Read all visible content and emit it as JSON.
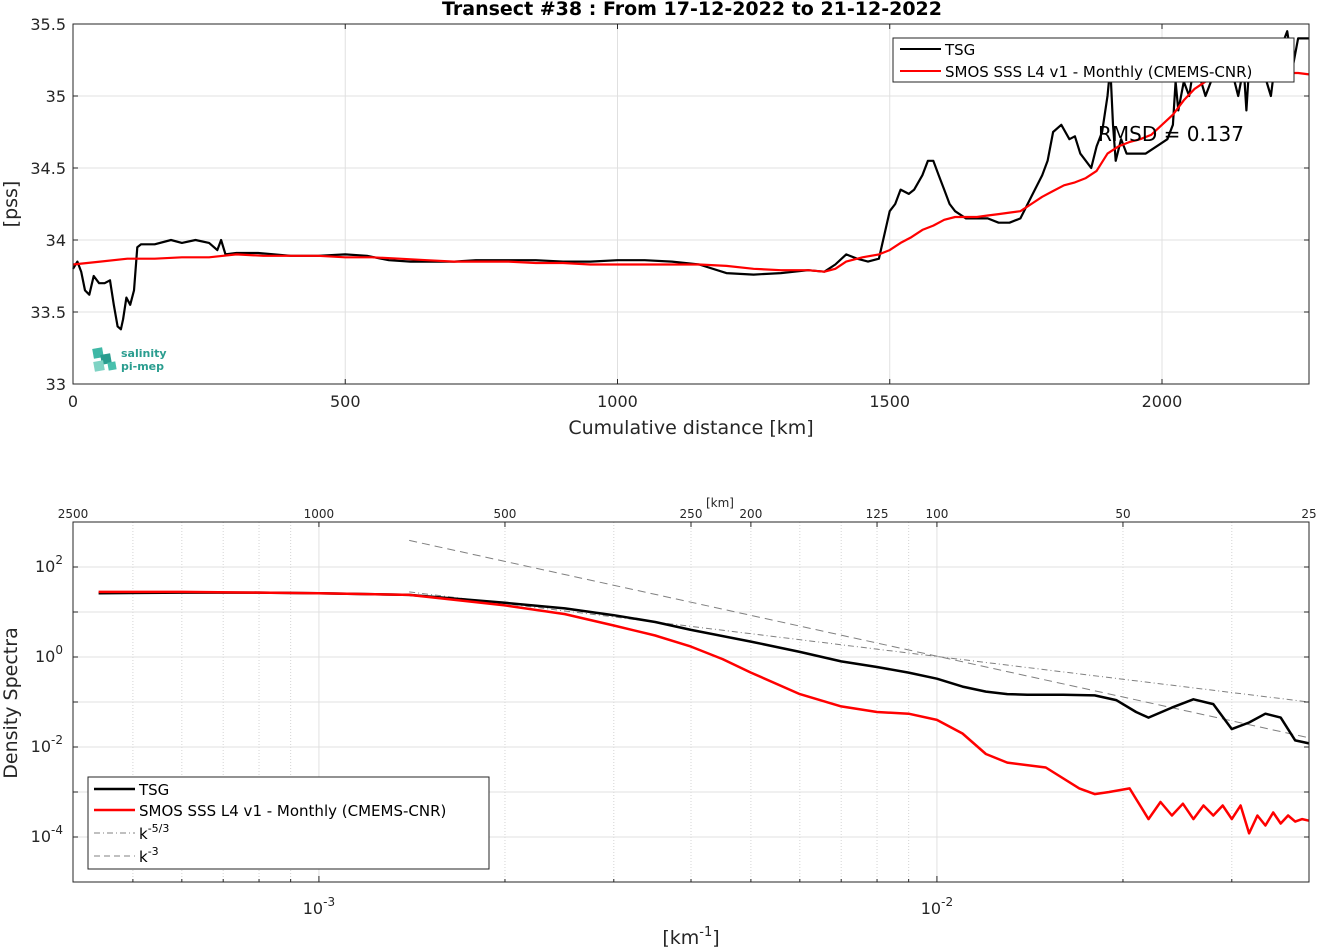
{
  "chart_data": [
    {
      "type": "line",
      "title": "Transect #38 : From 17-12-2022 to 21-12-2022",
      "xlabel": "Cumulative distance [km]",
      "ylabel": "[pss]",
      "xlim": [
        0,
        2270
      ],
      "ylim": [
        33,
        35.5
      ],
      "xticks": [
        0,
        500,
        1000,
        1500,
        2000
      ],
      "yticks": [
        33,
        33.5,
        34,
        34.5,
        35,
        35.5
      ],
      "xtick_labels": [
        "0",
        "500",
        "1000",
        "1500",
        "2000"
      ],
      "ytick_labels": [
        "33",
        "33.5",
        "34",
        "34.5",
        "35",
        "35.5"
      ],
      "grid": true,
      "legend_position": "top-right",
      "annotation": "RMSD = 0.137",
      "logo": {
        "line1": "salinity",
        "line2": "pi-mep"
      },
      "series": [
        {
          "name": "TSG",
          "color": "#000000",
          "x": [
            0,
            8,
            15,
            22,
            30,
            38,
            48,
            58,
            68,
            75,
            82,
            88,
            92,
            98,
            105,
            112,
            118,
            125,
            150,
            180,
            200,
            225,
            250,
            265,
            272,
            280,
            300,
            340,
            400,
            450,
            500,
            540,
            580,
            620,
            660,
            700,
            740,
            800,
            850,
            900,
            950,
            1000,
            1050,
            1100,
            1150,
            1200,
            1250,
            1300,
            1350,
            1380,
            1400,
            1420,
            1440,
            1460,
            1480,
            1500,
            1510,
            1520,
            1535,
            1545,
            1560,
            1570,
            1580,
            1590,
            1600,
            1610,
            1620,
            1640,
            1660,
            1680,
            1700,
            1720,
            1740,
            1760,
            1780,
            1790,
            1800,
            1815,
            1830,
            1840,
            1850,
            1860,
            1870,
            1880,
            1890,
            1900,
            1905,
            1910,
            1915,
            1925,
            1935,
            1950,
            1970,
            1990,
            2010,
            2020,
            2025,
            2030,
            2040,
            2050,
            2060,
            2080,
            2100,
            2120,
            2140,
            2150,
            2155,
            2160,
            2180,
            2200,
            2210,
            2220,
            2230,
            2240,
            2250,
            2270
          ],
          "values": [
            33.8,
            33.85,
            33.78,
            33.65,
            33.62,
            33.75,
            33.7,
            33.7,
            33.72,
            33.55,
            33.4,
            33.38,
            33.45,
            33.6,
            33.55,
            33.65,
            33.95,
            33.97,
            33.97,
            34.0,
            33.98,
            34.0,
            33.98,
            33.93,
            34.0,
            33.9,
            33.91,
            33.91,
            33.89,
            33.89,
            33.9,
            33.89,
            33.86,
            33.85,
            33.85,
            33.85,
            33.86,
            33.86,
            33.86,
            33.85,
            33.85,
            33.86,
            33.86,
            33.85,
            33.83,
            33.77,
            33.76,
            33.77,
            33.79,
            33.78,
            33.83,
            33.9,
            33.87,
            33.85,
            33.87,
            34.2,
            34.25,
            34.35,
            34.32,
            34.35,
            34.45,
            34.55,
            34.55,
            34.45,
            34.35,
            34.25,
            34.2,
            34.15,
            34.15,
            34.15,
            34.12,
            34.12,
            34.15,
            34.3,
            34.45,
            34.55,
            34.75,
            34.8,
            34.7,
            34.72,
            34.6,
            34.55,
            34.5,
            34.65,
            34.75,
            35.0,
            35.2,
            34.8,
            34.55,
            34.7,
            34.6,
            34.6,
            34.6,
            34.65,
            34.7,
            34.8,
            35.1,
            34.9,
            35.1,
            35.0,
            35.25,
            35.0,
            35.2,
            35.3,
            35.0,
            35.2,
            34.9,
            35.2,
            35.25,
            35.0,
            35.3,
            35.35,
            35.45,
            35.2,
            35.4,
            35.4
          ]
        },
        {
          "name": "SMOS SSS L4 v1 - Monthly (CMEMS-CNR)",
          "color": "#ff0000",
          "x": [
            0,
            50,
            100,
            150,
            200,
            250,
            300,
            350,
            400,
            450,
            500,
            550,
            600,
            650,
            700,
            750,
            800,
            850,
            900,
            950,
            1000,
            1050,
            1100,
            1150,
            1200,
            1250,
            1300,
            1350,
            1380,
            1400,
            1420,
            1450,
            1480,
            1500,
            1520,
            1540,
            1560,
            1580,
            1600,
            1620,
            1640,
            1660,
            1680,
            1700,
            1720,
            1740,
            1760,
            1780,
            1800,
            1820,
            1840,
            1860,
            1880,
            1900,
            1920,
            1940,
            1960,
            1980,
            2000,
            2020,
            2040,
            2060,
            2080,
            2100,
            2140,
            2180,
            2220,
            2250,
            2270
          ],
          "values": [
            33.83,
            33.85,
            33.87,
            33.87,
            33.88,
            33.88,
            33.9,
            33.89,
            33.89,
            33.89,
            33.88,
            33.88,
            33.87,
            33.86,
            33.85,
            33.85,
            33.85,
            33.84,
            33.84,
            33.83,
            33.83,
            33.83,
            33.83,
            33.83,
            33.82,
            33.8,
            33.79,
            33.79,
            33.78,
            33.8,
            33.85,
            33.88,
            33.9,
            33.93,
            33.98,
            34.02,
            34.07,
            34.1,
            34.14,
            34.16,
            34.16,
            34.16,
            34.17,
            34.18,
            34.19,
            34.2,
            34.25,
            34.3,
            34.34,
            34.38,
            34.4,
            34.43,
            34.48,
            34.6,
            34.65,
            34.68,
            34.7,
            34.73,
            34.8,
            34.87,
            34.97,
            35.05,
            35.1,
            35.12,
            35.15,
            35.15,
            35.16,
            35.16,
            35.15
          ]
        }
      ]
    },
    {
      "type": "line",
      "title": "",
      "xlabel": "[km-1]",
      "xlabel_base": "[km",
      "xlabel_sup": "-1",
      "xlabel_close": "]",
      "ylabel": "Density Spectra",
      "x_scale": "log",
      "y_scale": "log",
      "xlim": [
        0.0004,
        0.04
      ],
      "ylim": [
        1e-05,
        1000
      ],
      "top_axis_label": "[km]",
      "top_ticks_km": [
        2500,
        1000,
        500,
        250,
        200,
        125,
        100,
        50,
        25
      ],
      "top_tick_labels": [
        "2500",
        "1000",
        "500",
        "250",
        "200",
        "125",
        "100",
        "50",
        "25"
      ],
      "xtick_labels": [
        {
          "base": "10",
          "exp": "-3",
          "value": 0.001
        },
        {
          "base": "10",
          "exp": "-2",
          "value": 0.01
        }
      ],
      "ytick_labels": [
        {
          "base": "10",
          "exp": "-4",
          "value": 0.0001
        },
        {
          "base": "10",
          "exp": "-2",
          "value": 0.01
        },
        {
          "base": "10",
          "exp": "0",
          "value": 1
        },
        {
          "base": "10",
          "exp": "2",
          "value": 100
        }
      ],
      "grid": true,
      "legend_position": "bottom-left",
      "legend": [
        {
          "label": "TSG",
          "color": "#000000",
          "style": "solid"
        },
        {
          "label": "SMOS SSS L4 v1 - Monthly (CMEMS-CNR)",
          "color": "#ff0000",
          "style": "solid"
        },
        {
          "label": "k",
          "sup": "-5/3",
          "color": "#808080",
          "style": "dashdot"
        },
        {
          "label": "k",
          "sup": "-3",
          "color": "#808080",
          "style": "dashed"
        }
      ],
      "series": [
        {
          "name": "TSG",
          "color": "#000000",
          "x": [
            0.00044,
            0.0006,
            0.0008,
            0.001,
            0.0014,
            0.002,
            0.0025,
            0.003,
            0.0035,
            0.004,
            0.005,
            0.006,
            0.007,
            0.008,
            0.009,
            0.01,
            0.011,
            0.012,
            0.013,
            0.014,
            0.016,
            0.018,
            0.0195,
            0.021,
            0.022,
            0.024,
            0.026,
            0.028,
            0.03,
            0.032,
            0.034,
            0.036,
            0.038,
            0.04
          ],
          "values": [
            26,
            27,
            27,
            26,
            24,
            16,
            12,
            8.5,
            6,
            4.0,
            2.2,
            1.3,
            0.8,
            0.6,
            0.45,
            0.33,
            0.22,
            0.17,
            0.15,
            0.145,
            0.145,
            0.14,
            0.11,
            0.06,
            0.045,
            0.075,
            0.115,
            0.09,
            0.025,
            0.035,
            0.055,
            0.045,
            0.014,
            0.012
          ]
        },
        {
          "name": "SMOS SSS L4 v1 - Monthly (CMEMS-CNR)",
          "color": "#ff0000",
          "x": [
            0.00044,
            0.0006,
            0.0008,
            0.001,
            0.0014,
            0.002,
            0.0025,
            0.003,
            0.0035,
            0.004,
            0.0045,
            0.005,
            0.006,
            0.007,
            0.008,
            0.009,
            0.01,
            0.011,
            0.012,
            0.013,
            0.015,
            0.017,
            0.018,
            0.019,
            0.0205,
            0.021,
            0.022,
            0.023,
            0.024,
            0.025,
            0.026,
            0.027,
            0.028,
            0.029,
            0.03,
            0.031,
            0.032,
            0.033,
            0.034,
            0.035,
            0.036,
            0.037,
            0.038,
            0.039,
            0.04
          ],
          "values": [
            28,
            28,
            27,
            26,
            24,
            14,
            9,
            5,
            3,
            1.7,
            0.9,
            0.45,
            0.15,
            0.08,
            0.06,
            0.055,
            0.04,
            0.02,
            0.007,
            0.0045,
            0.0035,
            0.0012,
            0.0009,
            0.001,
            0.0012,
            0.0007,
            0.00025,
            0.0006,
            0.0003,
            0.00055,
            0.00025,
            0.0005,
            0.0003,
            0.0005,
            0.00025,
            0.0005,
            0.00012,
            0.0003,
            0.00018,
            0.00035,
            0.0002,
            0.0003,
            0.00022,
            0.00025,
            0.00023
          ]
        },
        {
          "name": "k-5/3",
          "color": "#808080",
          "x": [
            0.0014,
            0.04
          ],
          "values": [
            28,
            0.1
          ]
        },
        {
          "name": "k-3",
          "color": "#808080",
          "x": [
            0.0014,
            0.04
          ],
          "values": [
            390,
            0.016
          ]
        }
      ]
    }
  ]
}
